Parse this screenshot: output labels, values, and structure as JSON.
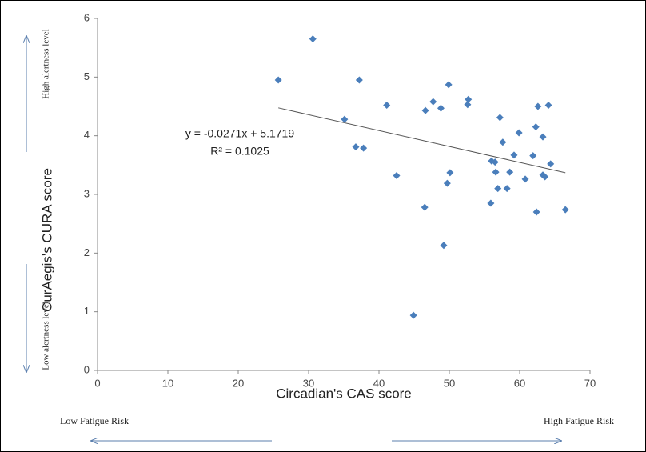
{
  "chart_data": {
    "type": "scatter",
    "x_label": "Circadian's CAS score",
    "y_label": "CurAegis's CURA score",
    "x": [
      25.7,
      30.6,
      37.2,
      35.1,
      41.1,
      36.7,
      37.8,
      42.5,
      47.7,
      46.6,
      48.8,
      49.9,
      52.7,
      52.6,
      44.9,
      46.5,
      49.2,
      49.7,
      50.1,
      57.2,
      62.6,
      64.1,
      59.9,
      57.6,
      62.3,
      63.3,
      59.2,
      61.9,
      56.0,
      56.5,
      56.6,
      58.6,
      60.8,
      63.3,
      63.6,
      64.4,
      56.9,
      58.2,
      55.9,
      62.4,
      66.5
    ],
    "values": [
      4.95,
      5.65,
      4.95,
      4.28,
      4.52,
      3.81,
      3.79,
      3.32,
      4.58,
      4.43,
      4.47,
      4.87,
      4.62,
      4.53,
      0.94,
      2.78,
      2.13,
      3.19,
      3.37,
      4.31,
      4.5,
      4.52,
      4.05,
      3.89,
      4.15,
      3.98,
      3.67,
      3.66,
      3.57,
      3.55,
      3.38,
      3.38,
      3.26,
      3.33,
      3.3,
      3.52,
      3.1,
      3.1,
      2.85,
      2.7,
      2.74
    ],
    "color": "#4a7ebb",
    "xlim": [
      0,
      70
    ],
    "xticks": [
      0,
      10,
      20,
      30,
      40,
      50,
      60,
      70
    ],
    "ylim": [
      0,
      6
    ],
    "yticks": [
      0,
      1,
      2,
      3,
      4,
      5,
      6
    ],
    "trendline": {
      "slope": -0.0271,
      "intercept": 5.1719,
      "label": "y = -0.0271x + 5.1719",
      "r2": {
        "value": 0.1025,
        "label": "R² = 0.1025"
      }
    },
    "annotations": [
      "High alertness level",
      "Low alertness level",
      "Low Fatigue Risk",
      "High Fatigue Risk"
    ]
  }
}
